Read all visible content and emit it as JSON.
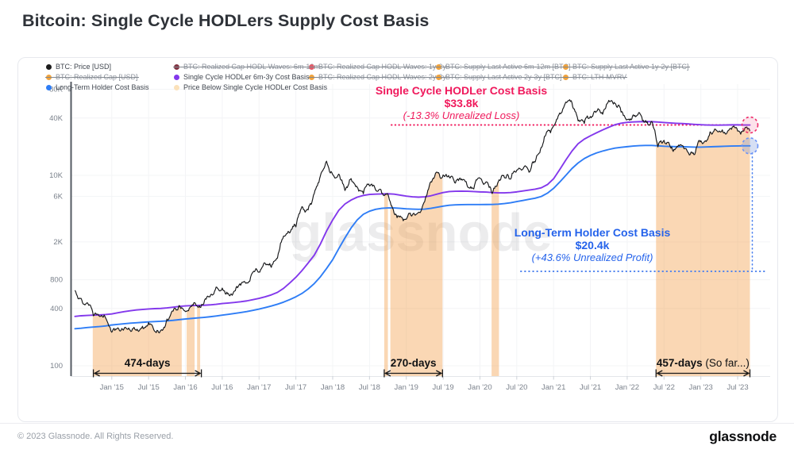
{
  "page": {
    "title": "Bitcoin: Single Cycle HODLers Supply Cost Basis",
    "watermark": "glassnode",
    "footer": {
      "copyright": "© 2023 Glassnode. All Rights Reserved.",
      "logo": "glassnode"
    }
  },
  "annotations": {
    "single_cycle": {
      "title": "Single Cycle HODLer Cost Basis",
      "value": "$33.8k",
      "note": "(-13.3% Unrealized Loss)",
      "color": "#f0195c"
    },
    "long_term": {
      "title": "Long-Term Holder Cost Basis",
      "value": "$20.4k",
      "note": "(+43.6% Unrealized Profit)",
      "color": "#2563eb"
    }
  },
  "legend": {
    "items": [
      {
        "label": "BTC: Price [USD]",
        "color": "#1c1c1c",
        "struck": false,
        "row": 0,
        "col": 0
      },
      {
        "label": "BTC: Realized Cap HODL Waves: 6m-12m",
        "color": "#823543",
        "struck": true,
        "row": 0,
        "col": 1
      },
      {
        "label": "BTC: Realized Cap HODL Waves: 1y-2y",
        "color": "#e35d6a",
        "struck": true,
        "row": 0,
        "col": 2
      },
      {
        "label": "BTC: Supply Last Active 6m-12m [BTC]",
        "color": "#f1a33c",
        "struck": true,
        "row": 0,
        "col": 3
      },
      {
        "label": "BTC: Supply Last Active 1y-2y [BTC]",
        "color": "#f1a33c",
        "struck": true,
        "row": 0,
        "col": 4
      },
      {
        "label": "BTC: Realized Cap [USD]",
        "color": "#f1a33c",
        "struck": true,
        "row": 1,
        "col": 0
      },
      {
        "label": "Single Cycle HODLer 6m-3y Cost Basis",
        "color": "#8338ec",
        "struck": false,
        "row": 1,
        "col": 1
      },
      {
        "label": "BTC: Realized Cap HODL Waves: 2y-3y",
        "color": "#f1a33c",
        "struck": true,
        "row": 1,
        "col": 2
      },
      {
        "label": "BTC: Supply Last Active 2y-3y [BTC]",
        "color": "#f1a33c",
        "struck": true,
        "row": 1,
        "col": 3
      },
      {
        "label": "BTC: LTH-MVRV",
        "color": "#f1a33c",
        "struck": true,
        "row": 1,
        "col": 4
      },
      {
        "label": "Long-Term Holder Cost Basis",
        "color": "#2e7df6",
        "struck": false,
        "row": 2,
        "col": 0
      },
      {
        "label": "Price Below Single Cycle HODLer Cost Basis",
        "color": "#fbe1ba",
        "struck": false,
        "row": 2,
        "col": 1
      }
    ]
  },
  "chart_data": {
    "type": "line",
    "title": "Bitcoin: Single Cycle HODLers Supply Cost Basis",
    "y_scale": "log",
    "x_unit": "months since 2014-07",
    "y_ticks": [
      {
        "label": "100",
        "value": 100
      },
      {
        "label": "400",
        "value": 400
      },
      {
        "label": "800",
        "value": 800
      },
      {
        "label": "2K",
        "value": 2000
      },
      {
        "label": "6K",
        "value": 6000
      },
      {
        "label": "10K",
        "value": 10000
      },
      {
        "label": "40K",
        "value": 40000
      },
      {
        "label": "80K",
        "value": 80000
      }
    ],
    "x_ticks": [
      {
        "label": "Jan '15",
        "month": 6
      },
      {
        "label": "Jul '15",
        "month": 12
      },
      {
        "label": "Jan '16",
        "month": 18
      },
      {
        "label": "Jul '16",
        "month": 24
      },
      {
        "label": "Jan '17",
        "month": 30
      },
      {
        "label": "Jul '17",
        "month": 36
      },
      {
        "label": "Jan '18",
        "month": 42
      },
      {
        "label": "Jul '18",
        "month": 48
      },
      {
        "label": "Jan '19",
        "month": 54
      },
      {
        "label": "Jul '19",
        "month": 60
      },
      {
        "label": "Jan '20",
        "month": 66
      },
      {
        "label": "Jul '20",
        "month": 72
      },
      {
        "label": "Jan '21",
        "month": 78
      },
      {
        "label": "Jul '21",
        "month": 84
      },
      {
        "label": "Jan '22",
        "month": 90
      },
      {
        "label": "Jul '22",
        "month": 96
      },
      {
        "label": "Jan '23",
        "month": 102
      },
      {
        "label": "Jul '23",
        "month": 108
      }
    ],
    "series": [
      {
        "name": "BTC: Price [USD]",
        "color": "#17181a",
        "values": [
          620,
          510,
          460,
          335,
          330,
          318,
          225,
          250,
          245,
          235,
          235,
          260,
          285,
          230,
          236,
          310,
          375,
          430,
          370,
          420,
          415,
          450,
          530,
          670,
          655,
          575,
          610,
          700,
          745,
          960,
          965,
          1190,
          1080,
          1350,
          2300,
          2480,
          2875,
          4700,
          4340,
          6450,
          9900,
          14100,
          10200,
          10300,
          6930,
          9250,
          7500,
          6400,
          7750,
          7030,
          6500,
          6350,
          4020,
          3740,
          3460,
          3850,
          4100,
          5320,
          8560,
          10800,
          10100,
          9600,
          8300,
          9150,
          7550,
          7200,
          9350,
          8550,
          6440,
          8620,
          9450,
          9140,
          11350,
          11650,
          10780,
          13800,
          19700,
          29000,
          33100,
          45200,
          58800,
          57750,
          37300,
          35000,
          41500,
          47100,
          43800,
          61300,
          57000,
          46200,
          38500,
          43200,
          45500,
          37650,
          36900,
          19900,
          23300,
          20050,
          19400,
          20500,
          17150,
          16550,
          23100,
          23500,
          28500,
          29250,
          27200,
          30450,
          29200,
          29100,
          29100
        ]
      },
      {
        "name": "Single Cycle HODLer 6m-3y Cost Basis",
        "color": "#8338ec",
        "values": [
          330,
          335,
          338,
          340,
          342,
          345,
          350,
          360,
          370,
          378,
          385,
          390,
          395,
          398,
          400,
          405,
          412,
          420,
          425,
          428,
          430,
          432,
          436,
          442,
          450,
          456,
          462,
          470,
          480,
          495,
          510,
          530,
          555,
          590,
          650,
          740,
          850,
          1000,
          1200,
          1450,
          1900,
          2600,
          3400,
          4300,
          5000,
          5500,
          5900,
          6150,
          6300,
          6350,
          6380,
          6400,
          6350,
          6200,
          6050,
          5950,
          5900,
          5950,
          6100,
          6350,
          6600,
          6750,
          6800,
          6820,
          6800,
          6750,
          6700,
          6680,
          6600,
          6550,
          6550,
          6600,
          6700,
          6850,
          7000,
          7150,
          7400,
          8000,
          9200,
          11500,
          14500,
          18000,
          21500,
          24000,
          26000,
          28000,
          30000,
          32000,
          34000,
          35300,
          36000,
          36400,
          36600,
          36700,
          36600,
          36300,
          35900,
          35500,
          35200,
          35000,
          34700,
          34300,
          34000,
          33800,
          33700,
          33700,
          33800,
          33900,
          33900,
          33800,
          33800
        ]
      },
      {
        "name": "Long-Term Holder Cost Basis",
        "color": "#2e7df6",
        "values": [
          245,
          248,
          252,
          255,
          258,
          262,
          268,
          272,
          276,
          280,
          283,
          286,
          289,
          291,
          293,
          296,
          300,
          305,
          310,
          314,
          318,
          322,
          327,
          333,
          340,
          347,
          354,
          362,
          371,
          382,
          394,
          408,
          424,
          443,
          466,
          495,
          530,
          575,
          640,
          730,
          860,
          1050,
          1300,
          1700,
          2200,
          2800,
          3400,
          3900,
          4200,
          4400,
          4500,
          4550,
          4550,
          4500,
          4450,
          4420,
          4400,
          4420,
          4500,
          4620,
          4750,
          4850,
          4900,
          4920,
          4930,
          4930,
          4930,
          4940,
          4950,
          4980,
          5050,
          5150,
          5300,
          5450,
          5600,
          5750,
          6000,
          6500,
          7300,
          8500,
          10000,
          11800,
          13500,
          15000,
          16200,
          17200,
          18000,
          18700,
          19300,
          19700,
          20000,
          20300,
          20500,
          20600,
          20600,
          20400,
          20200,
          20100,
          20000,
          20000,
          19900,
          19800,
          19800,
          19900,
          20000,
          20100,
          20200,
          20300,
          20350,
          20400,
          20400
        ]
      }
    ],
    "below_bands": [
      [
        2.9,
        17.4
      ],
      [
        18.2,
        19.5
      ],
      [
        19.9,
        20.4
      ],
      [
        50.4,
        51.0
      ],
      [
        51.4,
        59.9
      ],
      [
        67.9,
        69.1
      ],
      [
        94.7,
        110
      ]
    ],
    "band_fill": "#f2a04c",
    "spans": [
      {
        "start_month": 3.0,
        "end_month": 20.6,
        "label": "474-days",
        "suffix": ""
      },
      {
        "start_month": 50.4,
        "end_month": 59.9,
        "label": "270-days",
        "suffix": ""
      },
      {
        "start_month": 94.7,
        "end_month": 110,
        "label": "457-days",
        "suffix": " (So far...)"
      }
    ],
    "level_lines": {
      "single_cycle_level": 33800,
      "lth_note_underline_y_value": 980
    }
  }
}
